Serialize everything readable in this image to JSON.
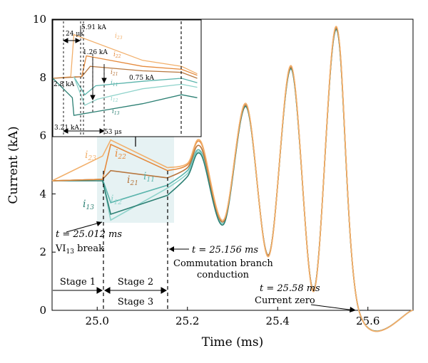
{
  "chart_data": {
    "type": "line",
    "title": "",
    "xlabel": "Time (ms)",
    "ylabel": "Current (kA)",
    "xlim": [
      24.9,
      25.7
    ],
    "ylim": [
      0,
      10
    ],
    "x_ticks": [
      "25.0",
      "25.2",
      "25.4",
      "25.6"
    ],
    "y_ticks": [
      "0",
      "2",
      "4",
      "6",
      "8",
      "10"
    ],
    "grid": false,
    "colors": {
      "i11": "#5ab4ac",
      "i12": "#8fd3cb",
      "i13": "#2b7f73",
      "i21": "#b7773f",
      "i22": "#e58a3c",
      "i23": "#f2b06c",
      "main": "#d6712a"
    },
    "series": [
      {
        "name": "i11",
        "x": [
          24.9,
          25.012,
          25.03,
          25.156,
          25.2,
          25.23,
          25.28,
          25.33,
          25.38,
          25.43,
          25.48,
          25.53,
          25.58,
          25.7
        ],
        "y": [
          4.45,
          4.5,
          3.7,
          4.3,
          4.8,
          5.45,
          3.0,
          7.0,
          1.9,
          8.3,
          0.7,
          9.65,
          0.0,
          0.0
        ]
      },
      {
        "name": "i12",
        "x": [
          24.9,
          25.012,
          25.03,
          25.156,
          25.2,
          25.23,
          25.28,
          25.33,
          25.38,
          25.43,
          25.48,
          25.53,
          25.58,
          25.7
        ],
        "y": [
          4.45,
          4.5,
          3.1,
          4.2,
          4.7,
          5.4,
          3.0,
          7.0,
          1.9,
          8.3,
          0.7,
          9.65,
          0.0,
          0.0
        ]
      },
      {
        "name": "i13",
        "x": [
          24.9,
          25.012,
          25.03,
          25.156,
          25.2,
          25.23,
          25.28,
          25.33,
          25.38,
          25.43,
          25.48,
          25.53,
          25.58,
          25.7
        ],
        "y": [
          4.45,
          4.45,
          3.3,
          3.95,
          4.6,
          5.35,
          2.95,
          7.0,
          1.9,
          8.3,
          0.7,
          9.65,
          0.0,
          0.0
        ]
      },
      {
        "name": "i21",
        "x": [
          24.9,
          25.012,
          25.03,
          25.156,
          25.2,
          25.23,
          25.28,
          25.33,
          25.38,
          25.43,
          25.48,
          25.53,
          25.58,
          25.7
        ],
        "y": [
          4.45,
          4.5,
          4.8,
          4.55,
          4.9,
          5.6,
          3.05,
          7.05,
          1.9,
          8.35,
          0.7,
          9.7,
          0.0,
          0.0
        ]
      },
      {
        "name": "i22",
        "x": [
          24.9,
          25.012,
          25.03,
          25.156,
          25.2,
          25.23,
          25.28,
          25.33,
          25.38,
          25.43,
          25.48,
          25.53,
          25.58,
          25.7
        ],
        "y": [
          4.45,
          4.5,
          5.7,
          4.8,
          5.0,
          5.75,
          3.1,
          7.1,
          1.85,
          8.4,
          0.65,
          9.75,
          0.0,
          0.0
        ]
      },
      {
        "name": "i23",
        "x": [
          24.9,
          25.012,
          25.03,
          25.156,
          25.2,
          25.23,
          25.28,
          25.33,
          25.38,
          25.43,
          25.48,
          25.53,
          25.58,
          25.7
        ],
        "y": [
          4.45,
          5.3,
          5.85,
          4.9,
          5.05,
          5.8,
          3.1,
          7.1,
          1.85,
          8.4,
          0.65,
          9.75,
          0.0,
          0.0
        ]
      }
    ],
    "annotations": [
      {
        "text": "t = 25.012 ms"
      },
      {
        "text": "VI",
        "sub": "13",
        "tail": " break"
      },
      {
        "text": "t = 25.156 ms"
      },
      {
        "text": "Commutation branch"
      },
      {
        "text": "conduction"
      },
      {
        "text": "t = 25.58 ms"
      },
      {
        "text": "Current zero"
      },
      {
        "text": "Stage 1"
      },
      {
        "text": "Stage 2"
      },
      {
        "text": "Stage 3"
      }
    ],
    "series_labels": [
      {
        "base": "i",
        "sub": "23"
      },
      {
        "base": "i",
        "sub": "22"
      },
      {
        "base": "i",
        "sub": "21"
      },
      {
        "base": "i",
        "sub": "11"
      },
      {
        "base": "i",
        "sub": "13"
      },
      {
        "base": "i",
        "sub": "12"
      }
    ],
    "inset": {
      "annotations": [
        "24 μs",
        "5.91 kA",
        "1.26 kA",
        "0.75 kA",
        "2.8 kA",
        "3.21 kA",
        "53 μs"
      ],
      "series_labels": [
        {
          "base": "i",
          "sub": "23"
        },
        {
          "base": "i",
          "sub": "22"
        },
        {
          "base": "i",
          "sub": "21"
        },
        {
          "base": "i",
          "sub": "11"
        },
        {
          "base": "i",
          "sub": "12"
        },
        {
          "base": "i",
          "sub": "13"
        }
      ]
    }
  }
}
